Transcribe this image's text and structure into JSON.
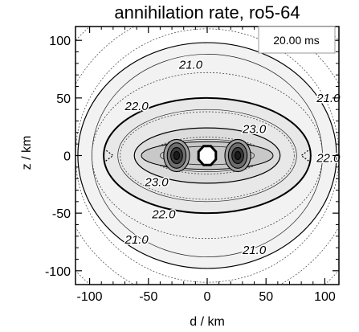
{
  "chart_data": {
    "type": "contour",
    "title": "annihilation rate, ro5-64",
    "xlabel": "d / km",
    "ylabel": "z / km",
    "xlim": [
      -112,
      112
    ],
    "ylim": [
      -112,
      112
    ],
    "xticks": [
      -100,
      -50,
      0,
      50,
      100
    ],
    "yticks": [
      -100,
      -50,
      0,
      50,
      100
    ],
    "xtick_labels": [
      "-100",
      "-50",
      "0",
      "50",
      "100"
    ],
    "ytick_labels": [
      "-100",
      "-50",
      "0",
      "50",
      "100"
    ],
    "time_label": "20.00 ms",
    "levels": [
      {
        "level": 21.0,
        "label": "21.0",
        "a": 110,
        "b": 98
      },
      {
        "level": 22.0,
        "label": "22.0",
        "a": 88,
        "b": 50
      },
      {
        "level": 23.0,
        "label": "23.0",
        "a": 62,
        "b": 24
      }
    ],
    "contour_labels": [
      {
        "text": "21.0",
        "x": -14,
        "y": 79
      },
      {
        "text": "21.0",
        "x": 103,
        "y": 50
      },
      {
        "text": "22.0",
        "x": -60,
        "y": 43
      },
      {
        "text": "23.0",
        "x": 40,
        "y": 23
      },
      {
        "text": "22.0",
        "x": 103,
        "y": -2
      },
      {
        "text": "23.0",
        "x": -43,
        "y": -23
      },
      {
        "text": "22.0",
        "x": -37,
        "y": -51
      },
      {
        "text": "21.0",
        "x": -60,
        "y": -73
      },
      {
        "text": "21.0",
        "x": 40,
        "y": -82
      }
    ],
    "grid": false,
    "fill_colors": [
      "#f2f2f2",
      "#e8e8e8",
      "#dcdcdc",
      "#c8c8c8",
      "#a0a0a0",
      "#6e6e6e",
      "#3a3a3a"
    ]
  }
}
